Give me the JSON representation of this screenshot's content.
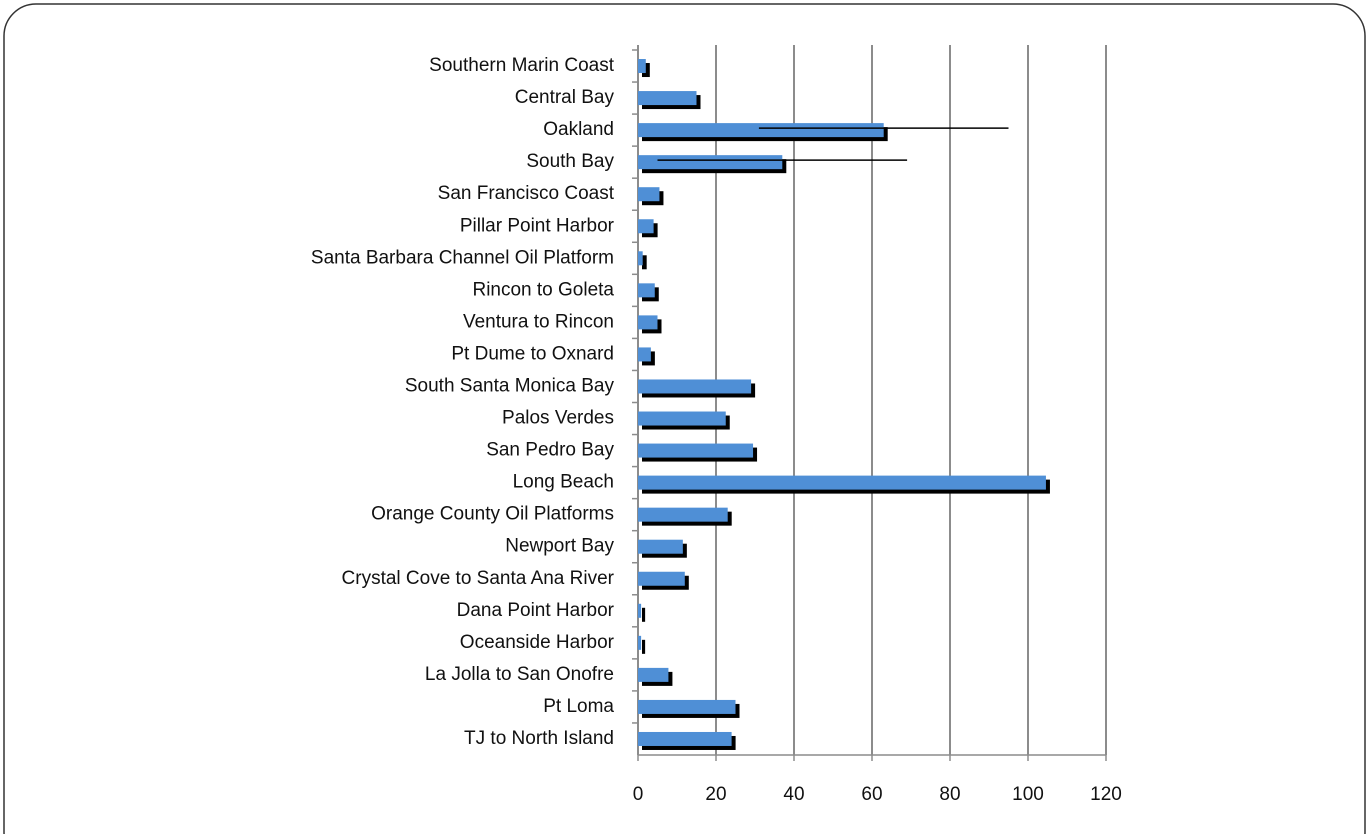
{
  "chart_data": {
    "type": "bar",
    "orientation": "horizontal",
    "categories": [
      "Southern Marin Coast",
      "Central Bay",
      "Oakland",
      "South Bay",
      "San Francisco Coast",
      "Pillar Point Harbor",
      "Santa Barbara Channel Oil Platform",
      "Rincon to Goleta",
      "Ventura to Rincon",
      "Pt Dume to Oxnard",
      "South Santa Monica Bay",
      "Palos Verdes",
      "San Pedro Bay",
      "Long Beach",
      "Orange County Oil Platforms",
      "Newport Bay",
      "Crystal Cove to Santa Ana River",
      "Dana Point Harbor",
      "Oceanside Harbor",
      "La Jolla to San Onofre",
      "Pt Loma",
      "TJ to North Island"
    ],
    "values": [
      2,
      15,
      63,
      37,
      5.5,
      4,
      1.2,
      4.3,
      5,
      3.3,
      29,
      22.5,
      29.5,
      104.6,
      23,
      11.5,
      12,
      0.8,
      0.8,
      7.8,
      25,
      24
    ],
    "errors": [
      null,
      null,
      32,
      32,
      null,
      null,
      null,
      null,
      null,
      null,
      null,
      null,
      null,
      null,
      null,
      null,
      null,
      null,
      null,
      null,
      null,
      null
    ],
    "color": "#4f8fd6",
    "xlim": [
      0,
      120
    ],
    "xticks": [
      0,
      20,
      40,
      60,
      80,
      100,
      120
    ],
    "grid": true
  }
}
